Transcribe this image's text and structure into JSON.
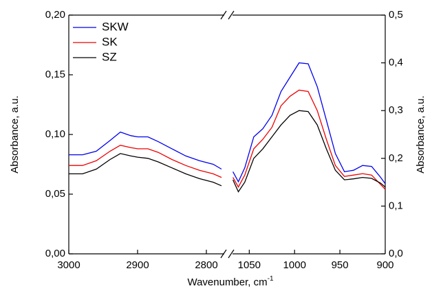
{
  "chart_data": [
    {
      "type": "line",
      "ylabel": "Absorbance, a.u.",
      "xlabel": "Wavenumber, cm",
      "xlabel_sup": "-1",
      "xlim": [
        3000,
        2772
      ],
      "xticks": [
        3000,
        2900,
        2800
      ],
      "ylim": [
        0,
        0.2
      ],
      "yticks": [
        {
          "value": 0,
          "label": "0,00"
        },
        {
          "value": 0.05,
          "label": "0,05"
        },
        {
          "value": 0.1,
          "label": "0,10"
        },
        {
          "value": 0.15,
          "label": "0,15"
        },
        {
          "value": 0.2,
          "label": "0,20"
        }
      ],
      "legend": "upper left",
      "x": [
        3000,
        2980,
        2960,
        2940,
        2925,
        2910,
        2900,
        2885,
        2870,
        2850,
        2830,
        2810,
        2790,
        2778
      ],
      "series": [
        {
          "name": "SKW",
          "color": "#0000ee",
          "values": [
            0.083,
            0.083,
            0.086,
            0.095,
            0.102,
            0.099,
            0.098,
            0.098,
            0.094,
            0.088,
            0.082,
            0.078,
            0.075,
            0.071
          ]
        },
        {
          "name": "SK",
          "color": "#ee0000",
          "values": [
            0.074,
            0.074,
            0.078,
            0.086,
            0.091,
            0.089,
            0.088,
            0.088,
            0.085,
            0.079,
            0.074,
            0.07,
            0.067,
            0.064
          ]
        },
        {
          "name": "SZ",
          "color": "#000000",
          "values": [
            0.067,
            0.067,
            0.071,
            0.079,
            0.084,
            0.082,
            0.081,
            0.08,
            0.077,
            0.072,
            0.067,
            0.063,
            0.06,
            0.057
          ]
        }
      ]
    },
    {
      "type": "line",
      "y2label": "Absorbance, a.u.",
      "xlim": [
        1070,
        900
      ],
      "xticks": [
        1050,
        1000,
        950,
        900
      ],
      "y2lim": [
        0,
        0.5
      ],
      "y2ticks": [
        {
          "value": 0,
          "label": "0,0"
        },
        {
          "value": 0.1,
          "label": "0,1"
        },
        {
          "value": 0.2,
          "label": "0,2"
        },
        {
          "value": 0.3,
          "label": "0,3"
        },
        {
          "value": 0.4,
          "label": "0,4"
        },
        {
          "value": 0.5,
          "label": "0,5"
        }
      ],
      "x": [
        1068,
        1062,
        1055,
        1045,
        1035,
        1025,
        1015,
        1005,
        995,
        985,
        975,
        965,
        955,
        945,
        935,
        925,
        915,
        905,
        900
      ],
      "series": [
        {
          "color": "#0000ee",
          "axis": "y2",
          "values": [
            0.172,
            0.151,
            0.18,
            0.245,
            0.262,
            0.29,
            0.34,
            0.37,
            0.4,
            0.398,
            0.35,
            0.28,
            0.21,
            0.172,
            0.175,
            0.185,
            0.183,
            0.16,
            0.147
          ]
        },
        {
          "color": "#ee0000",
          "axis": "y2",
          "values": [
            0.16,
            0.14,
            0.165,
            0.22,
            0.24,
            0.265,
            0.31,
            0.33,
            0.343,
            0.34,
            0.3,
            0.24,
            0.185,
            0.162,
            0.165,
            0.168,
            0.165,
            0.145,
            0.135
          ]
        },
        {
          "color": "#000000",
          "axis": "y2",
          "values": [
            0.155,
            0.13,
            0.15,
            0.2,
            0.22,
            0.245,
            0.27,
            0.29,
            0.3,
            0.298,
            0.27,
            0.22,
            0.175,
            0.155,
            0.157,
            0.16,
            0.158,
            0.148,
            0.14
          ]
        }
      ]
    }
  ]
}
